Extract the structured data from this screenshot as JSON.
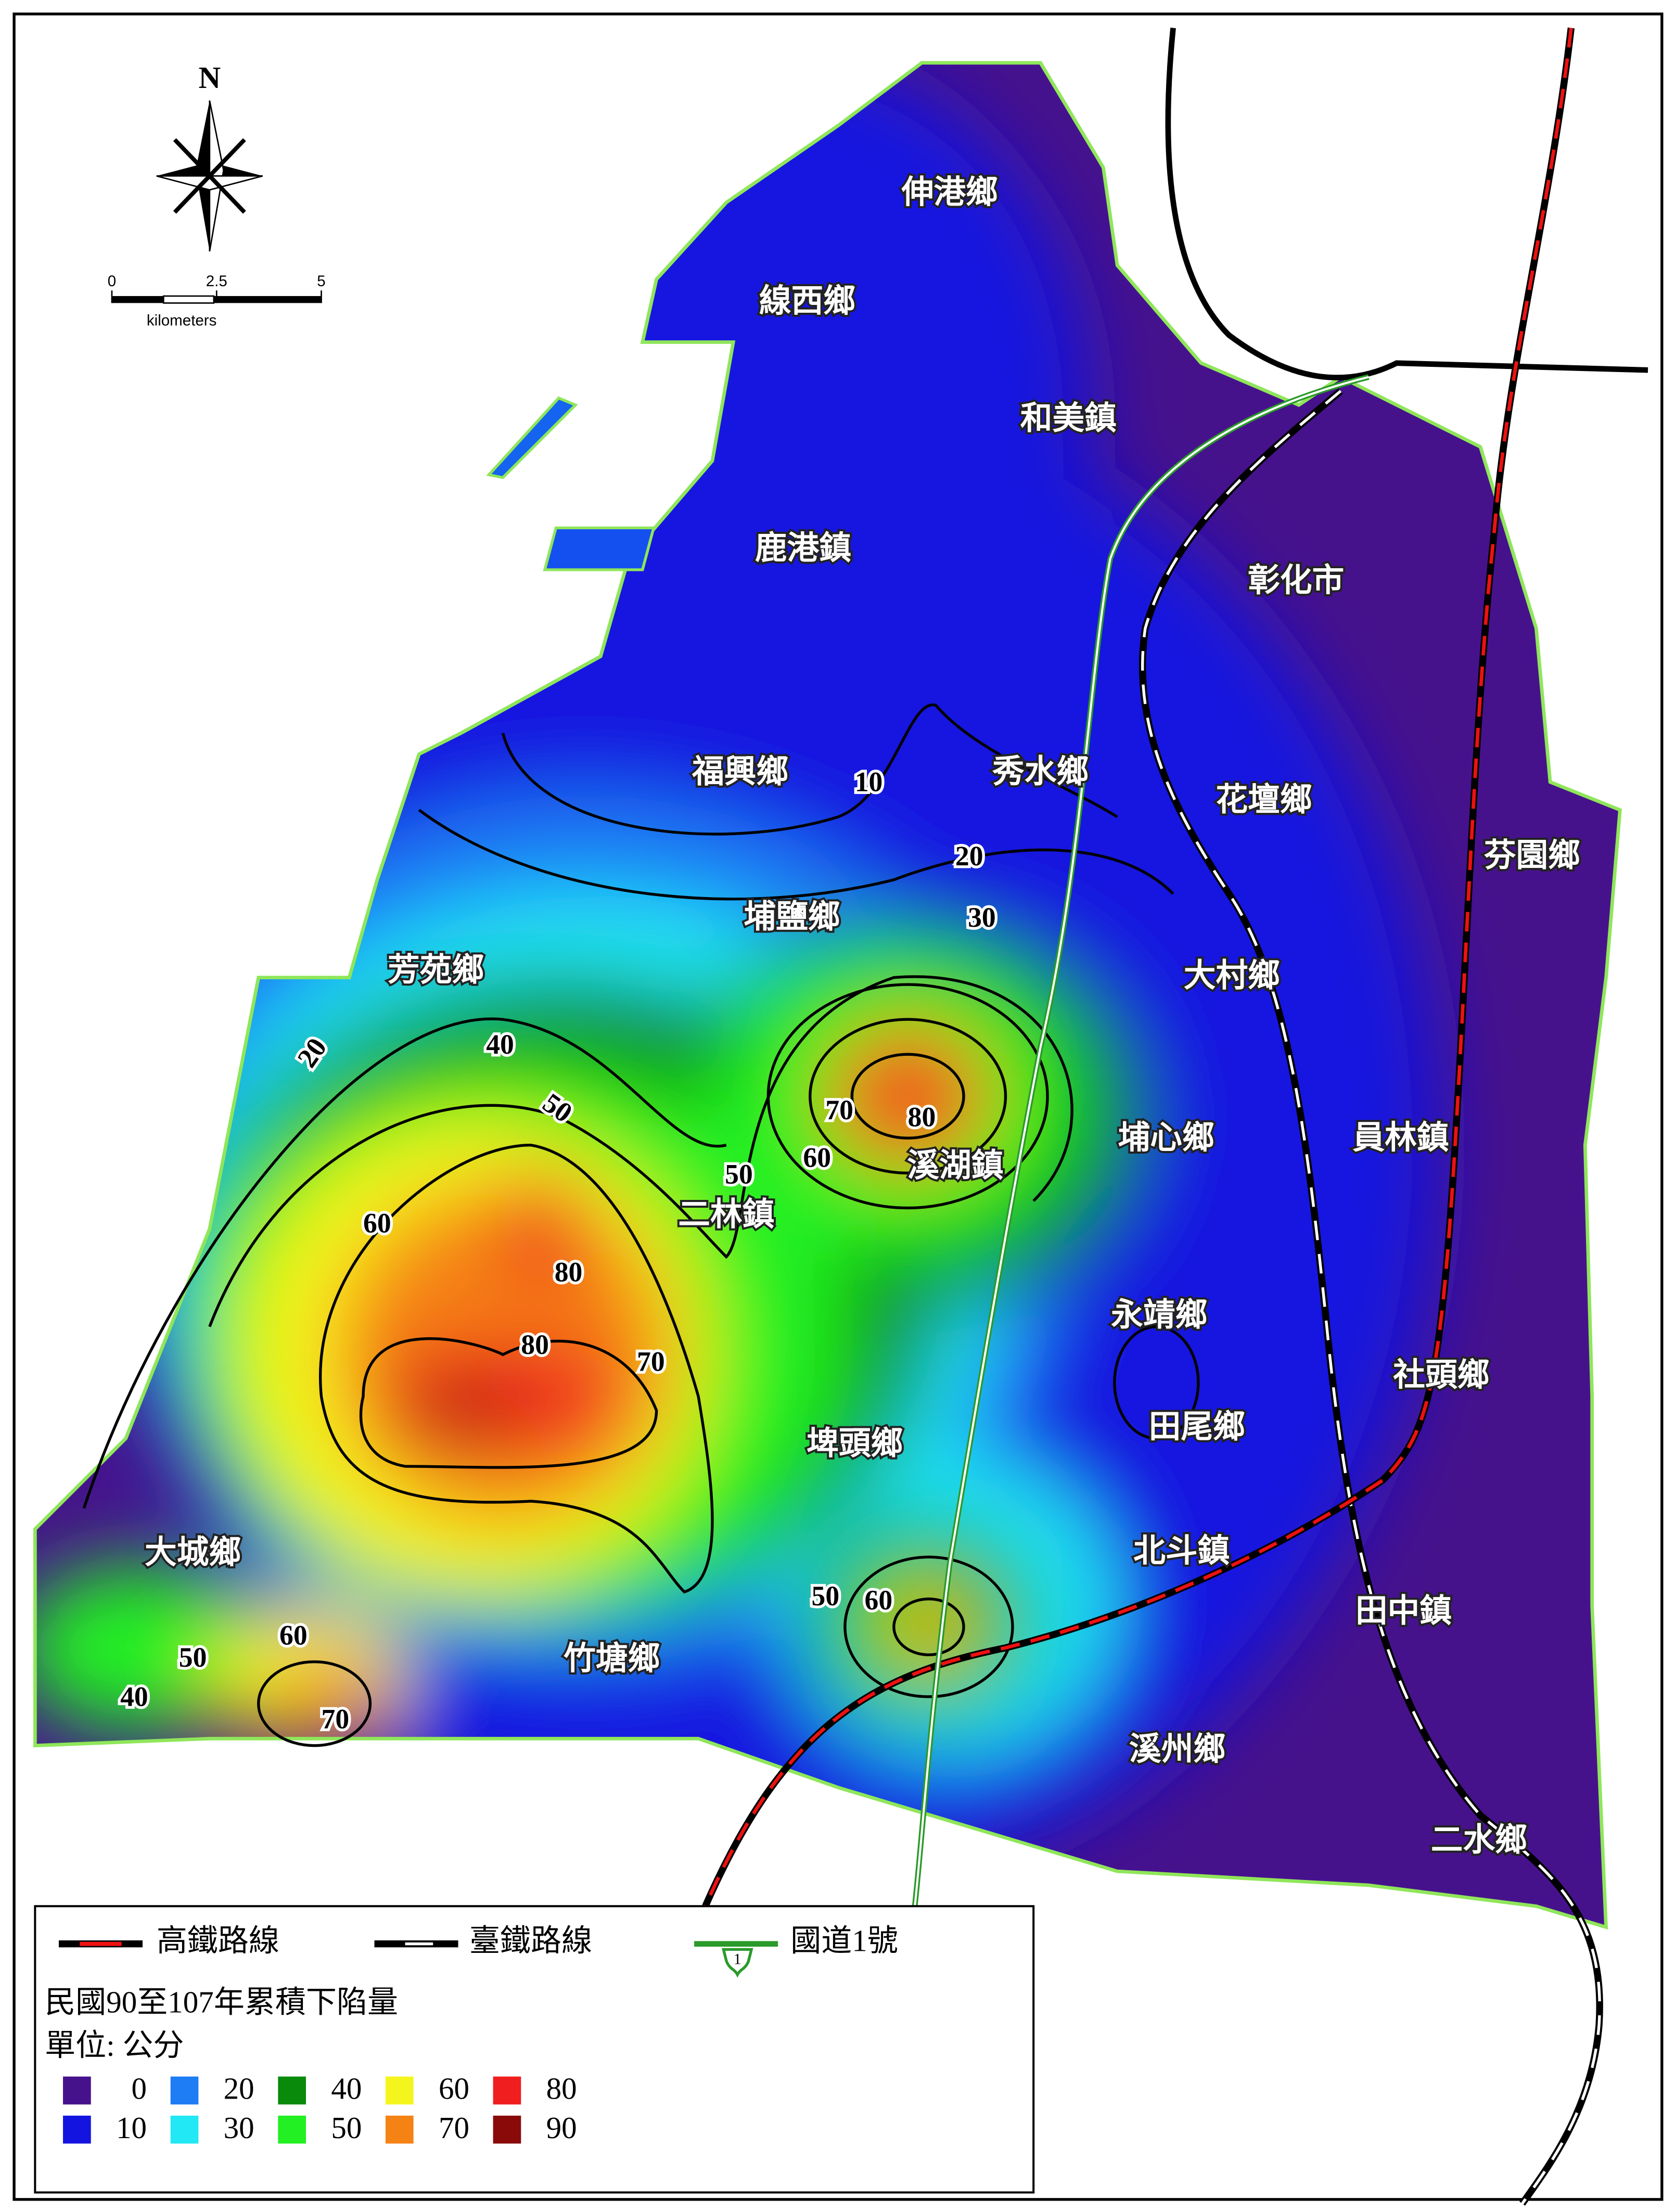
{
  "map": {
    "townships": [
      "伸港鄉",
      "線西鄉",
      "和美鎮",
      "鹿港鎮",
      "彰化市",
      "福興鄉",
      "秀水鄉",
      "花壇鄉",
      "芬園鄉",
      "埔鹽鄉",
      "芳苑鄉",
      "大村鄉",
      "埔心鄉",
      "員林鎮",
      "溪湖鎮",
      "二林鎮",
      "永靖鄉",
      "社頭鄉",
      "田尾鄉",
      "埤頭鄉",
      "大城鄉",
      "北斗鎮",
      "田中鎮",
      "竹塘鄉",
      "溪州鄉",
      "二水鄉"
    ],
    "contour_labels": [
      10,
      20,
      30,
      20,
      40,
      50,
      70,
      80,
      60,
      50,
      60,
      80,
      80,
      70,
      50,
      60,
      60,
      50,
      40,
      70
    ]
  },
  "north": "N",
  "scale_bar": {
    "ticks": [
      0,
      2.5,
      5
    ],
    "unit": "kilometers"
  },
  "legend": {
    "lines": [
      {
        "label": "高鐵路線"
      },
      {
        "label": "臺鐵路線"
      },
      {
        "label": "國道1號",
        "shield": "1"
      }
    ],
    "title": "民國90至107年累積下陷量",
    "unit": "單位: 公分",
    "classes": [
      {
        "value": 0,
        "color": "#46128c"
      },
      {
        "value": 10,
        "color": "#1414e0"
      },
      {
        "value": 20,
        "color": "#1e7cf5"
      },
      {
        "value": 30,
        "color": "#22e8f5"
      },
      {
        "value": 40,
        "color": "#0a8a0a"
      },
      {
        "value": 50,
        "color": "#22f022"
      },
      {
        "value": 60,
        "color": "#f5f51e"
      },
      {
        "value": 70,
        "color": "#f58214"
      },
      {
        "value": 80,
        "color": "#f01e1e"
      },
      {
        "value": 90,
        "color": "#8a0a0a"
      }
    ]
  }
}
